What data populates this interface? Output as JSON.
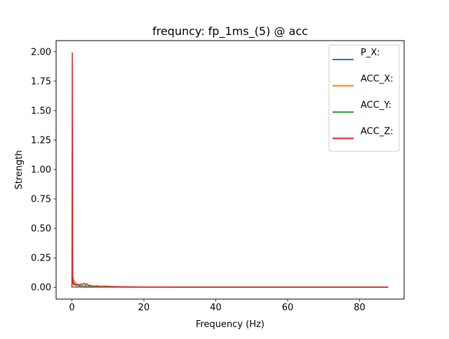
{
  "chart_data": {
    "type": "line",
    "title": "frequncy: fp_1ms_(5) @ acc",
    "xlabel": "Frequency (Hz)",
    "ylabel": "Strength",
    "xlim": [
      -4.4,
      92.4
    ],
    "ylim": [
      -0.0997,
      2.0937
    ],
    "xticks": [
      0,
      20,
      40,
      60,
      80
    ],
    "yticks": [
      0.0,
      0.25,
      0.5,
      0.75,
      1.0,
      1.25,
      1.5,
      1.75,
      2.0
    ],
    "xtick_labels": [
      "0",
      "20",
      "40",
      "60",
      "80"
    ],
    "ytick_labels": [
      "0.00",
      "0.25",
      "0.50",
      "0.75",
      "1.00",
      "1.25",
      "1.50",
      "1.75",
      "2.00"
    ],
    "grid": false,
    "legend_position": "top-right",
    "series": [
      {
        "name": "P_X:",
        "color": "#1f77b4",
        "x": [
          0,
          0.2,
          0.5,
          1,
          2,
          4,
          6,
          10,
          20,
          40,
          60,
          88
        ],
        "y": [
          0.0,
          0.004,
          0.003,
          0.002,
          0.002,
          0.001,
          0.001,
          0.001,
          0.001,
          0.001,
          0.001,
          0.001
        ]
      },
      {
        "name": "ACC_X:",
        "color": "#ff7f0e",
        "x": [
          0,
          0.1,
          0.2,
          0.3,
          0.5,
          0.7,
          1.0,
          1.3,
          1.6,
          2.0,
          2.5,
          3.0,
          4.0,
          5.0,
          6.0,
          8.0,
          10,
          15,
          20,
          30,
          40,
          50,
          60,
          70,
          80,
          88
        ],
        "y": [
          0.0,
          0.34,
          0.12,
          0.08,
          0.06,
          0.05,
          0.04,
          0.03,
          0.025,
          0.02,
          0.015,
          0.012,
          0.01,
          0.008,
          0.006,
          0.005,
          0.004,
          0.003,
          0.002,
          0.002,
          0.002,
          0.002,
          0.002,
          0.002,
          0.002,
          0.002
        ]
      },
      {
        "name": "ACC_Y:",
        "color": "#2ca02c",
        "x": [
          0,
          0.1,
          0.2,
          0.4,
          0.6,
          1.0,
          1.5,
          2.0,
          3.0,
          4.0,
          5.0,
          7.0,
          10,
          20,
          40,
          60,
          80,
          88
        ],
        "y": [
          0.0,
          0.06,
          0.05,
          0.03,
          0.02,
          0.02,
          0.015,
          0.012,
          0.01,
          0.008,
          0.006,
          0.004,
          0.003,
          0.002,
          0.001,
          0.001,
          0.001,
          0.001
        ]
      },
      {
        "name": "ACC_Z:",
        "color": "#d62728",
        "x": [
          0,
          0.1,
          0.2,
          0.3,
          0.4,
          0.5,
          0.7,
          0.9,
          1.2,
          1.5,
          1.8,
          2.2,
          2.6,
          3.0,
          3.4,
          3.8,
          4.2,
          4.6,
          5.0,
          5.5,
          6.0,
          7.0,
          8.0,
          9.0,
          10,
          11,
          12,
          14,
          16,
          20,
          25,
          30,
          40,
          50,
          60,
          70,
          80,
          88
        ],
        "y": [
          0.0,
          1.99,
          0.05,
          0.07,
          0.03,
          0.04,
          0.02,
          0.03,
          0.015,
          0.02,
          0.025,
          0.02,
          0.03,
          0.025,
          0.035,
          0.02,
          0.03,
          0.015,
          0.02,
          0.012,
          0.01,
          0.012,
          0.008,
          0.01,
          0.009,
          0.007,
          0.006,
          0.005,
          0.004,
          0.003,
          0.003,
          0.002,
          0.002,
          0.002,
          0.002,
          0.002,
          0.002,
          0.002
        ]
      }
    ]
  }
}
